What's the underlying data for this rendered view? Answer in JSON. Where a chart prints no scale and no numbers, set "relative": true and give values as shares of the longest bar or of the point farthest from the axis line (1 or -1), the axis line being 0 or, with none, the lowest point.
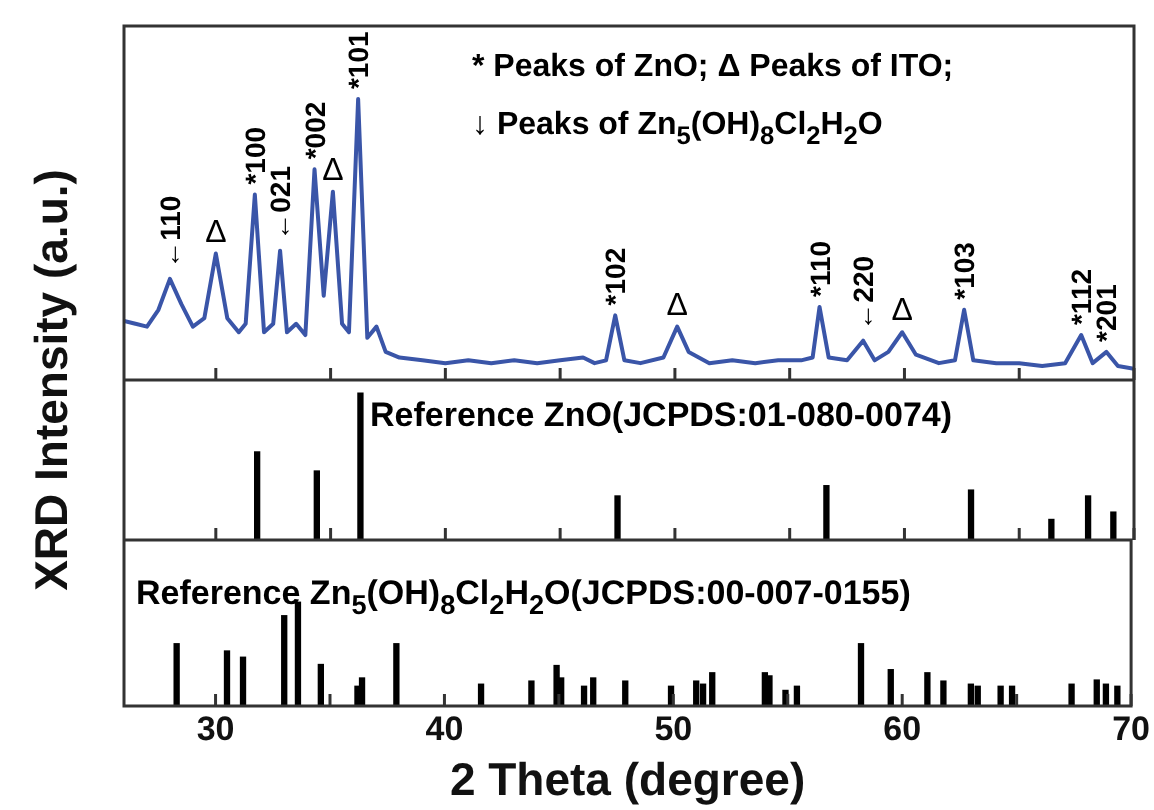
{
  "chart_data": [
    {
      "type": "line",
      "relative": true,
      "xlim": [
        26,
        70
      ],
      "xticks": [
        30,
        {
          "value": 35,
          "label": null
        },
        40,
        {
          "value": 45,
          "label": null
        },
        50,
        {
          "value": 55,
          "label": null
        },
        60,
        {
          "value": 65,
          "label": null
        },
        70
      ],
      "tick_labels": false,
      "marker": "none",
      "x": [
        26,
        26.5,
        27,
        27.5,
        28,
        28.5,
        29,
        29.5,
        30,
        30.5,
        31,
        31.3,
        31.7,
        32.1,
        32.5,
        32.8,
        33.1,
        33.5,
        33.9,
        34.3,
        34.7,
        35.1,
        35.5,
        35.8,
        36.2,
        36.6,
        37,
        37.4,
        38,
        39,
        40,
        41,
        42,
        43,
        44,
        45,
        46,
        46.5,
        47,
        47.4,
        47.8,
        48.5,
        49.5,
        50.1,
        50.6,
        51.5,
        52.5,
        53.5,
        54.5,
        55.5,
        56,
        56.3,
        56.7,
        57.5,
        58.2,
        58.7,
        59.3,
        59.9,
        60.5,
        61.5,
        62.2,
        62.6,
        63,
        64,
        65,
        66,
        67,
        67.7,
        68.2,
        68.8,
        69.3,
        70
      ],
      "series": [
        {
          "color": "#3a55a8",
          "values": [
            0.21,
            0.2,
            0.19,
            0.25,
            0.36,
            0.27,
            0.19,
            0.22,
            0.45,
            0.22,
            0.17,
            0.2,
            0.66,
            0.17,
            0.2,
            0.46,
            0.17,
            0.2,
            0.16,
            0.75,
            0.3,
            0.67,
            0.2,
            0.17,
            1.0,
            0.15,
            0.19,
            0.1,
            0.08,
            0.07,
            0.06,
            0.07,
            0.06,
            0.07,
            0.06,
            0.07,
            0.08,
            0.06,
            0.07,
            0.23,
            0.07,
            0.06,
            0.08,
            0.19,
            0.1,
            0.06,
            0.07,
            0.06,
            0.07,
            0.07,
            0.08,
            0.26,
            0.08,
            0.07,
            0.14,
            0.07,
            0.1,
            0.17,
            0.09,
            0.06,
            0.07,
            0.25,
            0.07,
            0.06,
            0.06,
            0.05,
            0.06,
            0.16,
            0.06,
            0.1,
            0.05,
            0.04
          ]
        }
      ],
      "annotations": [
        "* Peaks of ZnO; Δ Peaks of ITO;",
        "↓ Peaks of Zn$_{5}$(OH)$_{8}$Cl$_{2}$H$_{2}$O",
        {
          "text": "←110",
          "x": 28,
          "y": 0.36
        },
        {
          "text": "Δ",
          "x": 30,
          "y": 0.45
        },
        {
          "text": "*100",
          "x": 31.7,
          "y": 0.66
        },
        {
          "text": "←021",
          "x": 32.8,
          "y": 0.46
        },
        {
          "text": "*002",
          "x": 34.3,
          "y": 0.75
        },
        {
          "text": "Δ",
          "x": 35.1,
          "y": 0.67
        },
        {
          "text": "*101",
          "x": 36.2,
          "y": 1.0
        },
        {
          "text": "*102",
          "x": 47.4,
          "y": 0.23
        },
        {
          "text": "Δ",
          "x": 50.1,
          "y": 0.19
        },
        {
          "text": "*110",
          "x": 56.3,
          "y": 0.26
        },
        {
          "text": "←220",
          "x": 58.2,
          "y": 0.14
        },
        {
          "text": "Δ",
          "x": 59.9,
          "y": 0.17
        },
        {
          "text": "*103",
          "x": 62.6,
          "y": 0.25
        },
        {
          "text": "*112",
          "x": 67.7,
          "y": 0.16
        },
        {
          "text": "*201",
          "x": 68.8,
          "y": 0.1
        }
      ]
    },
    {
      "type": "bar",
      "relative": true,
      "ylabel": "XRD Intensity (a.u.)",
      "xlim": [
        26,
        70
      ],
      "xticks": [
        30,
        {
          "value": 35,
          "label": null
        },
        40,
        {
          "value": 45,
          "label": null
        },
        50,
        {
          "value": 55,
          "label": null
        },
        60,
        {
          "value": 65,
          "label": null
        },
        70
      ],
      "tick_labels": false,
      "x": [
        31.8,
        34.4,
        36.3,
        47.5,
        56.6,
        62.9,
        66.4,
        68.0,
        69.1
      ],
      "series": [
        {
          "color": "#000000",
          "values": [
            0.6,
            0.47,
            1.0,
            0.3,
            0.37,
            0.34,
            0.14,
            0.3,
            0.19
          ]
        }
      ],
      "annotations": [
        "Reference ZnO(JCPDS:01-080-0074)"
      ]
    },
    {
      "type": "bar",
      "relative": true,
      "xlabel": "2 Theta (degree)",
      "xlim": [
        26,
        70
      ],
      "xticks": [
        30,
        {
          "value": 35,
          "label": null
        },
        40,
        {
          "value": 45,
          "label": null
        },
        50,
        {
          "value": 55,
          "label": null
        },
        60,
        {
          "value": 65,
          "label": null
        },
        70
      ],
      "tick_labels": "x",
      "x": [
        28.3,
        30.5,
        31.2,
        33.0,
        33.6,
        34.6,
        36.2,
        36.4,
        37.9,
        41.6,
        43.8,
        44.9,
        45.1,
        46.1,
        46.5,
        47.9,
        49.9,
        51.0,
        51.3,
        51.7,
        54.0,
        54.2,
        54.9,
        55.4,
        58.2,
        59.5,
        61.1,
        61.8,
        63.0,
        63.3,
        64.3,
        64.8,
        67.4,
        68.5,
        68.9,
        69.4
      ],
      "series": [
        {
          "color": "#000000",
          "values": [
            0.6,
            0.53,
            0.47,
            0.87,
            1.0,
            0.4,
            0.19,
            0.27,
            0.6,
            0.21,
            0.24,
            0.39,
            0.27,
            0.19,
            0.27,
            0.24,
            0.19,
            0.24,
            0.21,
            0.32,
            0.32,
            0.29,
            0.15,
            0.19,
            0.6,
            0.35,
            0.32,
            0.24,
            0.21,
            0.19,
            0.19,
            0.19,
            0.21,
            0.25,
            0.21,
            0.19
          ]
        }
      ],
      "annotations": [
        "Reference Zn$_{5}$(OH)$_{8}$Cl$_{2}$H$_{2}$O(JCPDS:00-007-0155)"
      ]
    }
  ]
}
